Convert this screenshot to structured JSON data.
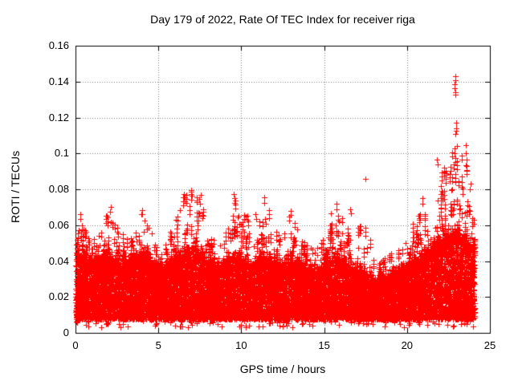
{
  "chart_data": {
    "type": "scatter",
    "title": "Day 179 of 2022, Rate Of TEC Index for receiver riga",
    "xlabel": "GPS time / hours",
    "ylabel": "ROTI / TECUs",
    "xlim": [
      0,
      25
    ],
    "ylim": [
      0,
      0.16
    ],
    "xticks": [
      0,
      5,
      10,
      15,
      20,
      25
    ],
    "xtick_labels": [
      "0",
      "5",
      "10",
      "15",
      "20",
      "25"
    ],
    "yticks": [
      0,
      0.02,
      0.04,
      0.06,
      0.08,
      0.1,
      0.12,
      0.14,
      0.16
    ],
    "ytick_labels": [
      "0",
      "0.02",
      "0.04",
      "0.06",
      "0.08",
      "0.1",
      "0.12",
      "0.14",
      "0.16"
    ],
    "grid": true,
    "legend": "none",
    "marker": "plus",
    "marker_color": "#ff0000",
    "marker_size_px": 7,
    "background": "#ffffff",
    "axis_color": "#000000",
    "grid_color": "#848484",
    "envelope_profile": {
      "t_start": 0,
      "t_end": 24,
      "t_step_hours": 0.5,
      "band_lo": 0.0075,
      "band_hi": [
        0.046,
        0.042,
        0.038,
        0.04,
        0.043,
        0.04,
        0.038,
        0.042,
        0.045,
        0.04,
        0.036,
        0.038,
        0.04,
        0.044,
        0.048,
        0.046,
        0.04,
        0.036,
        0.038,
        0.043,
        0.04,
        0.037,
        0.039,
        0.042,
        0.039,
        0.037,
        0.04,
        0.037,
        0.035,
        0.034,
        0.037,
        0.042,
        0.04,
        0.037,
        0.035,
        0.032,
        0.03,
        0.03,
        0.032,
        0.034,
        0.037,
        0.04,
        0.044,
        0.047,
        0.05,
        0.054,
        0.056,
        0.052,
        0.048
      ],
      "sparse_max": [
        0.066,
        0.06,
        0.054,
        0.058,
        0.07,
        0.06,
        0.054,
        0.063,
        0.068,
        0.058,
        0.05,
        0.056,
        0.062,
        0.078,
        0.08,
        0.078,
        0.056,
        0.05,
        0.058,
        0.078,
        0.066,
        0.07,
        0.06,
        0.075,
        0.058,
        0.054,
        0.068,
        0.056,
        0.05,
        0.048,
        0.054,
        0.07,
        0.066,
        0.058,
        0.062,
        0.06,
        0.048,
        0.042,
        0.044,
        0.05,
        0.056,
        0.066,
        0.076,
        0.086,
        0.092,
        0.1,
        0.105,
        0.105,
        0.072
      ]
    },
    "outlier_clusters": [
      {
        "t": 0.3,
        "v": [
          0.066,
          0.0635
        ]
      },
      {
        "t": 2.1,
        "v": [
          0.07,
          0.0675
        ]
      },
      {
        "t": 4.0,
        "v": [
          0.0685,
          0.066
        ]
      },
      {
        "t": 6.55,
        "v": [
          0.0775,
          0.0755
        ]
      },
      {
        "t": 7.0,
        "v": [
          0.0785,
          0.0765,
          0.074
        ]
      },
      {
        "t": 7.5,
        "v": [
          0.077,
          0.0745,
          0.072
        ]
      },
      {
        "t": 9.6,
        "v": [
          0.0775,
          0.075,
          0.0725
        ]
      },
      {
        "t": 10.85,
        "v": [
          0.066,
          0.0635
        ]
      },
      {
        "t": 11.35,
        "v": [
          0.0755,
          0.0725
        ]
      },
      {
        "t": 13.0,
        "v": [
          0.068,
          0.0655
        ]
      },
      {
        "t": 15.75,
        "v": [
          0.072,
          0.069
        ]
      },
      {
        "t": 16.6,
        "v": [
          0.069,
          0.0665
        ]
      },
      {
        "t": 17.5,
        "v": [
          0.086
        ]
      },
      {
        "t": 20.9,
        "v": [
          0.075,
          0.072
        ]
      },
      {
        "t": 21.85,
        "v": [
          0.0965,
          0.094
        ]
      },
      {
        "t": 22.1,
        "v": [
          0.082,
          0.079
        ]
      },
      {
        "t": 22.35,
        "v": [
          0.089,
          0.086,
          0.0835
        ]
      },
      {
        "t": 22.88,
        "v": [
          0.103,
          0.1,
          0.0975,
          0.095
        ]
      },
      {
        "t": 22.9,
        "v": [
          0.143,
          0.1408,
          0.1386,
          0.1364,
          0.1341,
          0.1328
        ]
      },
      {
        "t": 22.92,
        "v": [
          0.1172,
          0.1141,
          0.1127,
          0.111
        ]
      },
      {
        "t": 23.3,
        "v": [
          0.087,
          0.084,
          0.0815
        ]
      },
      {
        "t": 23.55,
        "v": [
          0.1045,
          0.1,
          0.0965,
          0.0935,
          0.0905
        ]
      },
      {
        "t": 23.8,
        "v": [
          0.083,
          0.08
        ]
      }
    ],
    "render": {
      "seed": 179,
      "dense_points": 13500,
      "band_top_strings": 450,
      "sparse_strings": 780,
      "low_stragglers": 130,
      "t_max": 24.08,
      "straggler_depth": 0.0045,
      "string_spacing_v": 0.0022
    }
  }
}
